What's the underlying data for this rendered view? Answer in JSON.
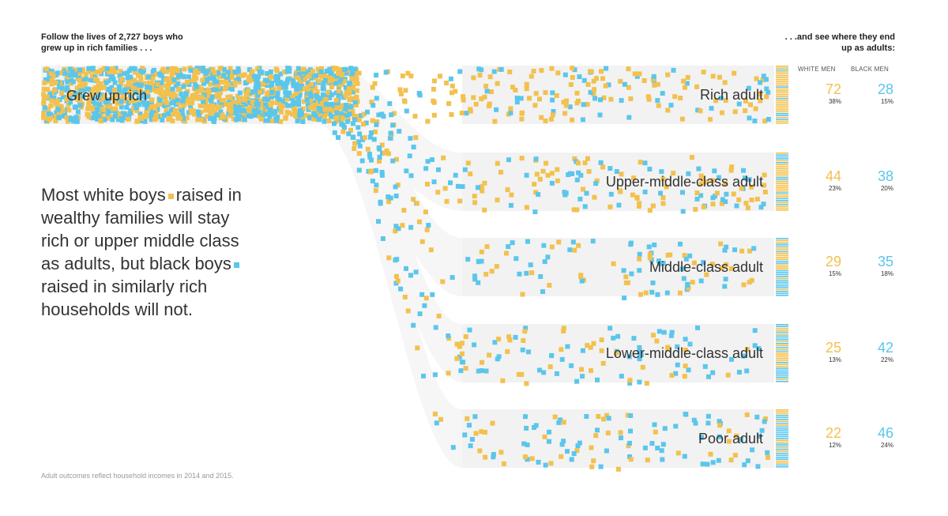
{
  "header": {
    "intro_line1": "Follow the lives of  2,727  boys who",
    "intro_line2": "grew up in rich families . . .",
    "outro_line1": ". . .and see where they end",
    "outro_line2": "up as adults:",
    "col_white": "WHITE MEN",
    "col_black": "BLACK MEN"
  },
  "annotation": {
    "part1": "Most white boys",
    "part2": "raised in wealthy families will stay rich or upper middle class as adults, but black boys",
    "part3": "raised in similarly rich households will not."
  },
  "footnote": "Adult outcomes reflect household incomes in 2014 and 2015.",
  "colors": {
    "white_men": "#f2c14e",
    "black_men": "#5bc6ec",
    "band": "#f2f2f2"
  },
  "chart_data": {
    "type": "sankey",
    "source": "Grew up rich",
    "total_boys": 2727,
    "outcomes": [
      {
        "label": "Rich adult",
        "white_count": 72,
        "white_pct": "38%",
        "black_count": 28,
        "black_pct": "15%"
      },
      {
        "label": "Upper-middle-class adult",
        "white_count": 44,
        "white_pct": "23%",
        "black_count": 38,
        "black_pct": "20%"
      },
      {
        "label": "Middle-class adult",
        "white_count": 29,
        "white_pct": "15%",
        "black_count": 35,
        "black_pct": "18%"
      },
      {
        "label": "Lower-middle-class adult",
        "white_count": 25,
        "white_pct": "13%",
        "black_count": 42,
        "black_pct": "22%"
      },
      {
        "label": "Poor adult",
        "white_count": 22,
        "white_pct": "12%",
        "black_count": 46,
        "black_pct": "24%"
      }
    ]
  }
}
